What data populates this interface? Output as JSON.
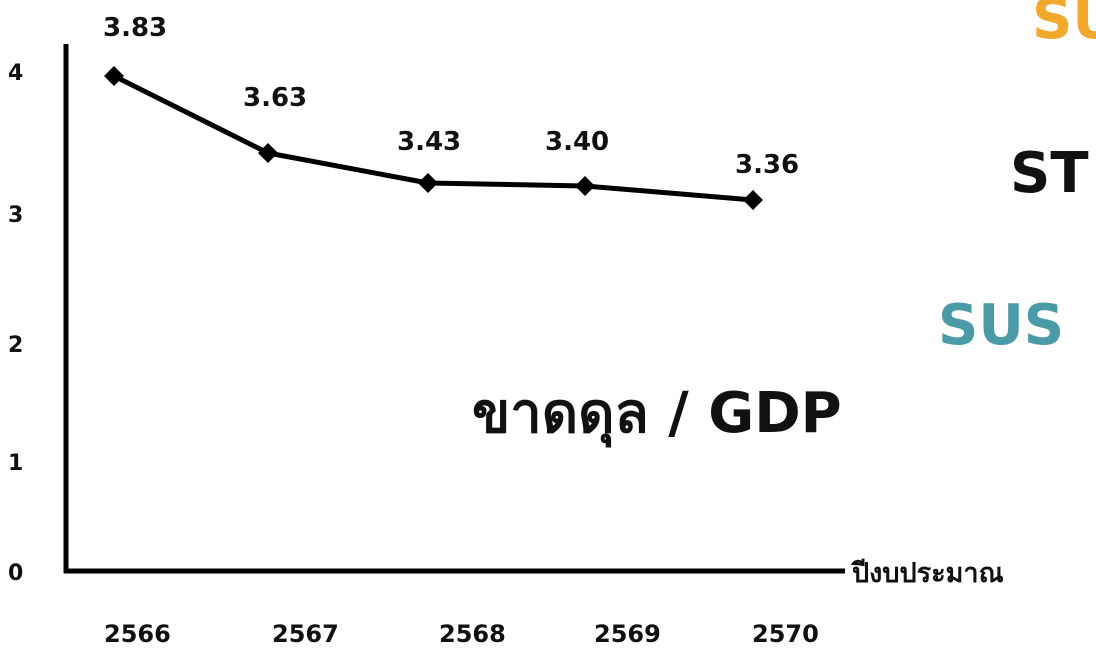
{
  "chart_data": {
    "type": "line",
    "title": "ขาดดุล / GDP",
    "xlabel": "ปีงบประมาณ",
    "ylabel": "",
    "categories": [
      "2566",
      "2567",
      "2568",
      "2569",
      "2570"
    ],
    "series": [
      {
        "values": [
          3.83,
          3.63,
          3.43,
          3.4,
          3.36
        ]
      }
    ],
    "data_labels": [
      "3.83",
      "3.63",
      "3.43",
      "3.40",
      "3.36"
    ],
    "yticks": [
      "0",
      "1",
      "2",
      "3",
      "4"
    ],
    "ylim": [
      0,
      4
    ],
    "grid": false,
    "legend": "none",
    "colors": {
      "line": "#000000",
      "text": "#111111"
    }
  },
  "decorations": {
    "word1": {
      "text": "SU",
      "color": "#f2a82c"
    },
    "word2": {
      "text": "ST",
      "color": "#111111"
    },
    "word3": {
      "text": "SUS",
      "color": "#4b9aa8"
    }
  }
}
